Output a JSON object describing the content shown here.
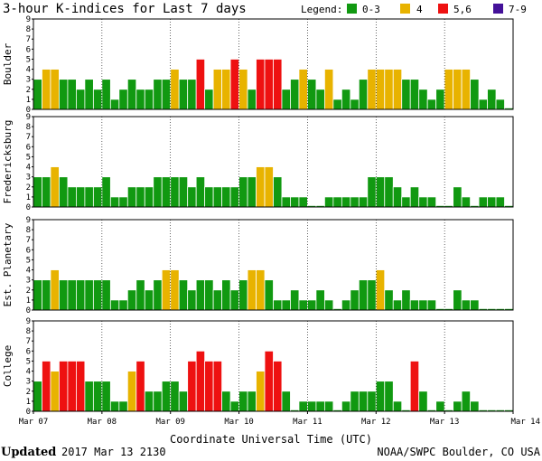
{
  "colors": {
    "quiet": "#119911",
    "moderate": "#e8b300",
    "storm": "#ee1111",
    "severe": "#441199",
    "frame": "#000000"
  },
  "footer": {
    "updated_label": "Updated",
    "updated_value": "2017 Mar 13 2130",
    "credit": "NOAA/SWPC Boulder, CO USA"
  },
  "chart_data": {
    "type": "bar",
    "title": "3-hour K-indices for Last 7 days",
    "xlabel": "Coordinate Universal Time (UTC)",
    "ylim": [
      0,
      9
    ],
    "yticks": [
      "0",
      "1",
      "2",
      "3",
      "4",
      "5",
      "6",
      "7",
      "8",
      "9"
    ],
    "x_tick_labels": [
      "Mar 07",
      "Mar 08",
      "Mar 09",
      "Mar 10",
      "Mar 11",
      "Mar 12",
      "Mar 13",
      "Mar 14"
    ],
    "intervals_per_day": 8,
    "legend": {
      "title": "Legend:",
      "entries": [
        {
          "label": "0-3",
          "color_key": "quiet"
        },
        {
          "label": "4",
          "color_key": "moderate"
        },
        {
          "label": "5,6",
          "color_key": "storm"
        },
        {
          "label": "7-9",
          "color_key": "severe"
        }
      ]
    },
    "series": [
      {
        "name": "Boulder",
        "values": [
          3,
          4,
          4,
          3,
          3,
          2,
          3,
          2,
          3,
          1,
          2,
          3,
          2,
          2,
          3,
          3,
          4,
          3,
          3,
          5,
          2,
          4,
          4,
          5,
          4,
          2,
          5,
          5,
          5,
          2,
          3,
          4,
          3,
          2,
          4,
          1,
          2,
          1,
          3,
          4,
          4,
          4,
          4,
          3,
          3,
          2,
          1,
          2,
          4,
          4,
          4,
          3,
          1,
          2,
          1,
          0
        ]
      },
      {
        "name": "Fredericksburg",
        "values": [
          3,
          3,
          4,
          3,
          2,
          2,
          2,
          2,
          3,
          1,
          1,
          2,
          2,
          2,
          3,
          3,
          3,
          3,
          2,
          3,
          2,
          2,
          2,
          2,
          3,
          3,
          4,
          4,
          3,
          1,
          1,
          1,
          0,
          0,
          1,
          1,
          1,
          1,
          1,
          3,
          3,
          3,
          2,
          1,
          2,
          1,
          1,
          0,
          0,
          2,
          1,
          0,
          1,
          1,
          1,
          0
        ]
      },
      {
        "name": "Est. Planetary",
        "values": [
          3,
          3,
          4,
          3,
          3,
          3,
          3,
          3,
          3,
          1,
          1,
          2,
          3,
          2,
          3,
          4,
          4,
          3,
          2,
          3,
          3,
          2,
          3,
          2,
          3,
          4,
          4,
          3,
          1,
          1,
          2,
          1,
          1,
          2,
          1,
          0,
          1,
          2,
          3,
          3,
          4,
          2,
          1,
          2,
          1,
          1,
          1,
          0,
          0,
          2,
          1,
          1,
          0,
          0,
          0,
          0
        ]
      },
      {
        "name": "College",
        "values": [
          3,
          5,
          4,
          5,
          5,
          5,
          3,
          3,
          3,
          1,
          1,
          4,
          5,
          2,
          2,
          3,
          3,
          2,
          5,
          6,
          5,
          5,
          2,
          1,
          2,
          2,
          4,
          6,
          5,
          2,
          0,
          1,
          1,
          1,
          1,
          0,
          1,
          2,
          2,
          2,
          3,
          3,
          1,
          0,
          5,
          2,
          0,
          1,
          0,
          1,
          2,
          1,
          0,
          0,
          0,
          0
        ]
      }
    ]
  }
}
